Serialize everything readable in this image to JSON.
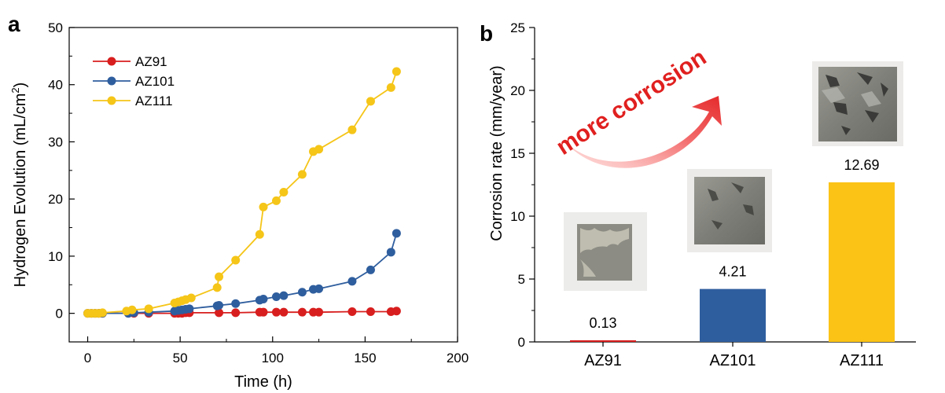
{
  "panel_a_label": "a",
  "panel_b_label": "b",
  "colors": {
    "AZ91": "#d81e1e",
    "AZ101": "#2f5e9e",
    "AZ111": "#f5c518",
    "AZ111_bar": "#fbc316"
  },
  "chart_data": [
    {
      "type": "line",
      "xlabel": "Time (h)",
      "ylabel_main": "Hydrogen Evolution (mL/cm",
      "ylabel_sup": "2",
      "ylabel_end": ")",
      "xlim": [
        -10,
        200
      ],
      "ylim": [
        -5,
        50
      ],
      "xticks": [
        0,
        50,
        100,
        150,
        200
      ],
      "yticks": [
        0,
        10,
        20,
        30,
        40,
        50
      ],
      "legend_position": "top-left",
      "grid": false,
      "series": [
        {
          "name": "AZ91",
          "x": [
            0,
            2,
            4,
            6,
            8,
            22,
            25,
            33,
            47,
            49,
            51,
            53,
            55,
            71,
            80,
            93,
            95,
            102,
            106,
            116,
            122,
            125,
            143,
            153,
            164,
            167
          ],
          "y": [
            0,
            0,
            0,
            0,
            0,
            0,
            0,
            0,
            0,
            0,
            0,
            0.1,
            0.1,
            0.1,
            0.1,
            0.2,
            0.2,
            0.2,
            0.2,
            0.2,
            0.2,
            0.2,
            0.3,
            0.3,
            0.3,
            0.4
          ]
        },
        {
          "name": "AZ101",
          "x": [
            0,
            2,
            4,
            6,
            8,
            22,
            25,
            33,
            47,
            49,
            51,
            53,
            55,
            70,
            71,
            80,
            93,
            95,
            102,
            106,
            116,
            122,
            125,
            143,
            153,
            164,
            167
          ],
          "y": [
            0,
            0,
            0,
            0,
            0,
            0,
            0.1,
            0.2,
            0.4,
            0.5,
            0.6,
            0.7,
            0.8,
            1.3,
            1.4,
            1.7,
            2.3,
            2.5,
            2.9,
            3.1,
            3.7,
            4.2,
            4.3,
            5.6,
            7.6,
            10.7,
            14.0
          ]
        },
        {
          "name": "AZ111",
          "x": [
            0,
            2,
            4,
            6,
            8,
            21,
            24,
            33,
            47,
            49,
            51,
            53,
            56,
            70,
            71,
            80,
            93,
            95,
            102,
            106,
            116,
            122,
            125,
            143,
            153,
            164,
            167
          ],
          "y": [
            0,
            0,
            0,
            0,
            0.1,
            0.4,
            0.6,
            0.8,
            1.8,
            2.0,
            2.2,
            2.4,
            2.7,
            4.5,
            6.4,
            9.3,
            13.8,
            18.6,
            19.7,
            21.2,
            24.3,
            28.3,
            28.7,
            32.1,
            37.1,
            39.5,
            42.3
          ]
        }
      ]
    },
    {
      "type": "bar",
      "categories": [
        "AZ91",
        "AZ101",
        "AZ111"
      ],
      "values": [
        0.13,
        4.21,
        12.69
      ],
      "data_labels": [
        "0.13",
        "4.21",
        "12.69"
      ],
      "ylabel": "Corrosion rate (mm/year)",
      "ylim": [
        0,
        25
      ],
      "yticks": [
        0,
        5,
        10,
        15,
        20,
        25
      ],
      "annotation": "more corrosion"
    }
  ]
}
